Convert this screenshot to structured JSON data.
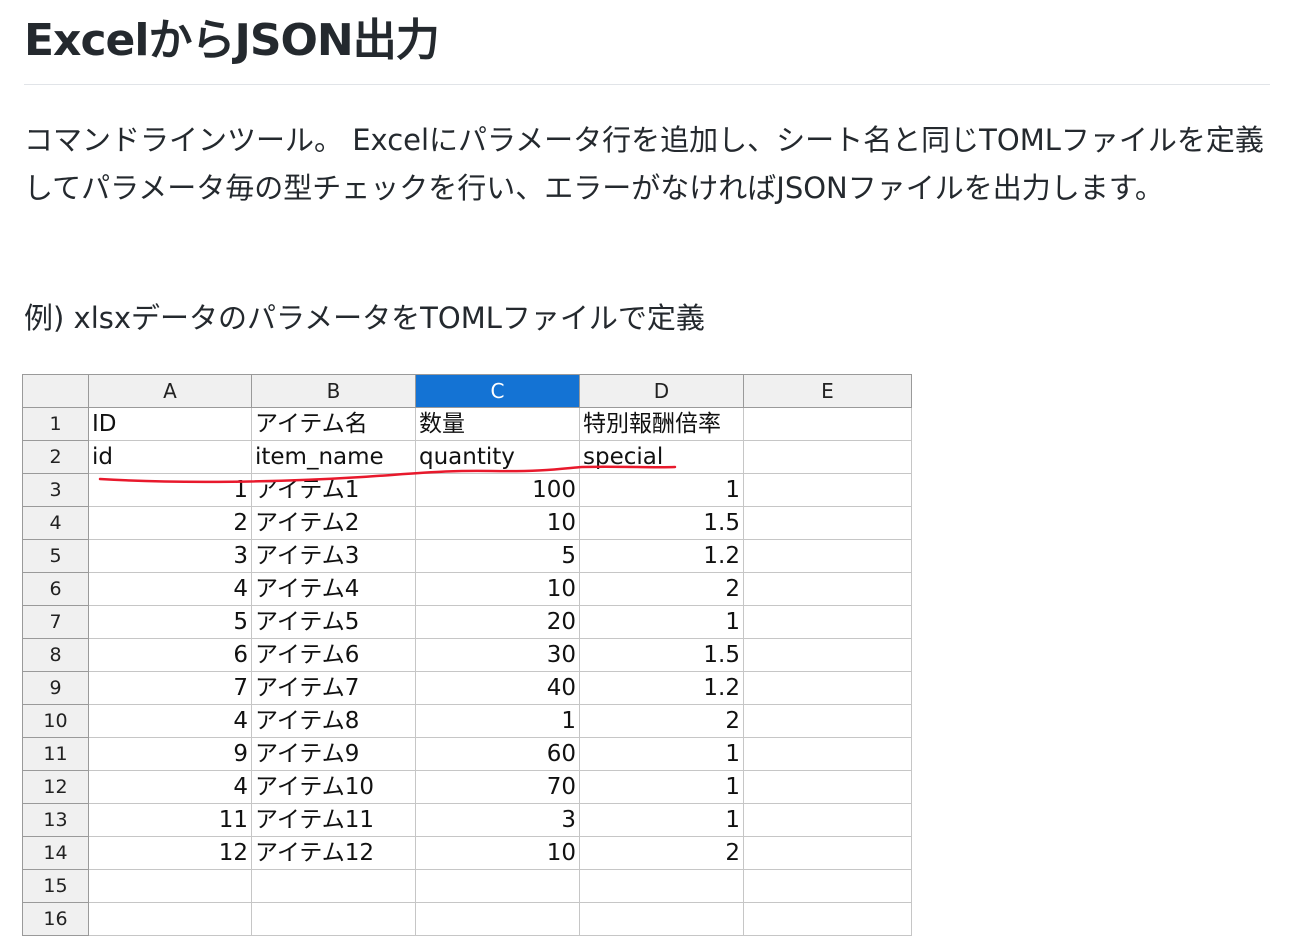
{
  "page": {
    "title": "ExcelからJSON出力",
    "description": "コマンドラインツール。 Excelにパラメータ行を追加し、シート名と同じTOMLファイルを定義してパラメータ毎の型チェックを行い、エラーがなければJSONファイルを出力します。",
    "example_caption": "例) xlsxデータのパラメータをTOMLファイルで定義"
  },
  "sheet": {
    "columns": [
      "A",
      "B",
      "C",
      "D",
      "E"
    ],
    "selected_column": "C",
    "rows": [
      {
        "n": "1",
        "a": "ID",
        "b": "アイテム名",
        "c": "数量",
        "d": "特別報酬倍率",
        "e": ""
      },
      {
        "n": "2",
        "a": "id",
        "b": "item_name",
        "c": "quantity",
        "d": "special",
        "e": ""
      },
      {
        "n": "3",
        "a": "1",
        "b": "アイテム1",
        "c": "100",
        "d": "1",
        "e": ""
      },
      {
        "n": "4",
        "a": "2",
        "b": "アイテム2",
        "c": "10",
        "d": "1.5",
        "e": ""
      },
      {
        "n": "5",
        "a": "3",
        "b": "アイテム3",
        "c": "5",
        "d": "1.2",
        "e": ""
      },
      {
        "n": "6",
        "a": "4",
        "b": "アイテム4",
        "c": "10",
        "d": "2",
        "e": ""
      },
      {
        "n": "7",
        "a": "5",
        "b": "アイテム5",
        "c": "20",
        "d": "1",
        "e": ""
      },
      {
        "n": "8",
        "a": "6",
        "b": "アイテム6",
        "c": "30",
        "d": "1.5",
        "e": ""
      },
      {
        "n": "9",
        "a": "7",
        "b": "アイテム7",
        "c": "40",
        "d": "1.2",
        "e": ""
      },
      {
        "n": "10",
        "a": "4",
        "b": "アイテム8",
        "c": "1",
        "d": "2",
        "e": ""
      },
      {
        "n": "11",
        "a": "9",
        "b": "アイテム9",
        "c": "60",
        "d": "1",
        "e": ""
      },
      {
        "n": "12",
        "a": "4",
        "b": "アイテム10",
        "c": "70",
        "d": "1",
        "e": ""
      },
      {
        "n": "13",
        "a": "11",
        "b": "アイテム11",
        "c": "3",
        "d": "1",
        "e": ""
      },
      {
        "n": "14",
        "a": "12",
        "b": "アイテム12",
        "c": "10",
        "d": "2",
        "e": ""
      },
      {
        "n": "15",
        "a": "",
        "b": "",
        "c": "",
        "d": "",
        "e": ""
      },
      {
        "n": "16",
        "a": "",
        "b": "",
        "c": "",
        "d": "",
        "e": ""
      }
    ]
  },
  "colors": {
    "selected_header": "#1473d4",
    "annotation_underline": "#e8192c"
  }
}
